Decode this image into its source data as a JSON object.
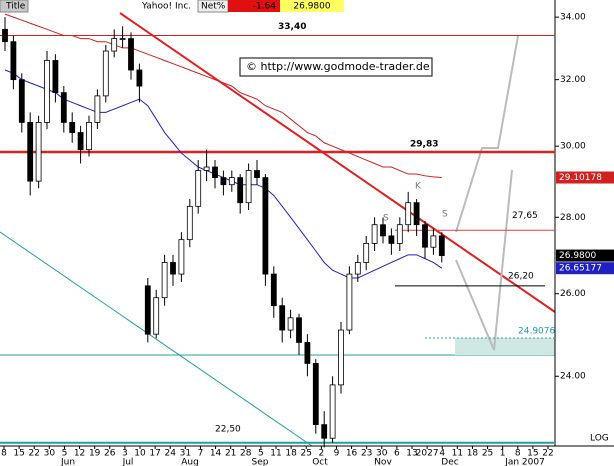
{
  "header": {
    "tab": "Title",
    "symbol": "Yahoo! Inc.",
    "field": "Net%",
    "change": "-1.64",
    "last": "26.9800"
  },
  "copyright": "© http://www.godmode-trader.de",
  "scale_label": "LOG",
  "chart_data": {
    "type": "candlestick",
    "ylim": [
      22.43,
      34.57
    ],
    "log": true,
    "yticks": [
      {
        "value": 24,
        "label": "24.00"
      },
      {
        "value": 26,
        "label": "26.00"
      },
      {
        "value": 28,
        "label": "28.00"
      },
      {
        "value": 30,
        "label": "30.00"
      },
      {
        "value": 32,
        "label": "32.00"
      },
      {
        "value": 34,
        "label": "34.00"
      }
    ],
    "xtick_labels": [
      "8",
      "15",
      "22",
      "30",
      "5",
      "12",
      "19",
      "26",
      "3",
      "10",
      "17",
      "24",
      "31",
      "7",
      "14",
      "21",
      "28",
      "5",
      "11",
      "18",
      "25",
      "2",
      "9",
      "16",
      "23",
      "30",
      "6",
      "13",
      "2027",
      "4",
      "11",
      "18",
      "25",
      "1",
      "8",
      "15",
      "22"
    ],
    "months": [
      "Jun",
      "Jul",
      "Aug",
      "Sep",
      "Oct",
      "Nov",
      "Dec",
      "Jan 2007"
    ],
    "open": [
      33.6,
      33.2,
      32.0,
      30.7,
      29.0,
      30.7,
      32.6,
      31.6,
      30.7,
      30.4,
      29.9,
      30.7,
      31.5,
      32.9,
      33.3,
      33.3,
      32.3,
      26.2,
      25.0,
      25.9,
      26.8,
      26.5,
      27.4,
      28.3,
      29.3,
      29.4,
      29.1,
      28.9,
      29.1,
      28.4,
      29.3,
      29.1,
      26.5,
      25.7,
      25.1,
      25.4,
      24.8,
      24.3,
      22.9,
      22.6,
      23.8,
      25.1,
      26.5,
      26.8,
      27.3,
      27.8,
      27.5,
      27.3,
      27.8,
      28.4,
      27.8,
      27.2,
      27.5
    ],
    "high": [
      34.0,
      33.4,
      32.2,
      31.0,
      30.9,
      32.9,
      32.8,
      31.8,
      31.0,
      30.6,
      30.9,
      31.7,
      33.1,
      33.6,
      33.7,
      33.5,
      32.5,
      26.4,
      26.1,
      27.0,
      27.0,
      27.6,
      28.5,
      29.6,
      29.9,
      29.6,
      29.3,
      29.3,
      29.2,
      29.5,
      29.6,
      29.2,
      26.7,
      25.9,
      25.6,
      25.5,
      25.0,
      24.4,
      23.2,
      24.0,
      25.3,
      26.7,
      27.0,
      27.5,
      28.0,
      28.0,
      27.7,
      28.0,
      28.7,
      28.5,
      27.9,
      27.7,
      27.6
    ],
    "low": [
      32.9,
      31.7,
      30.4,
      28.6,
      28.8,
      30.5,
      31.3,
      30.4,
      30.1,
      29.5,
      29.7,
      30.5,
      31.3,
      32.7,
      33.0,
      32.0,
      31.3,
      24.8,
      24.9,
      25.7,
      26.2,
      26.3,
      27.2,
      28.1,
      29.0,
      28.8,
      28.6,
      28.7,
      28.1,
      28.2,
      28.9,
      26.2,
      25.4,
      24.8,
      24.9,
      24.5,
      24.0,
      22.7,
      22.4,
      22.5,
      23.6,
      25.0,
      26.3,
      26.6,
      27.1,
      27.3,
      27.0,
      27.1,
      27.6,
      27.5,
      26.9,
      27.0,
      26.8
    ],
    "close": [
      33.2,
      32.0,
      30.7,
      29.0,
      30.7,
      32.6,
      31.6,
      30.7,
      30.4,
      29.9,
      30.7,
      31.5,
      32.9,
      33.3,
      33.3,
      32.3,
      31.8,
      25.0,
      25.9,
      26.8,
      26.5,
      27.4,
      28.3,
      29.3,
      29.4,
      29.1,
      28.9,
      29.1,
      28.4,
      29.3,
      29.1,
      26.5,
      25.7,
      25.1,
      25.4,
      24.8,
      24.3,
      22.9,
      22.6,
      23.8,
      25.1,
      26.5,
      26.8,
      27.3,
      27.8,
      27.5,
      27.3,
      27.8,
      28.4,
      27.8,
      27.2,
      27.5,
      26.98
    ],
    "series": [
      {
        "color": "#2020c0",
        "values": [
          32.3,
          32.2,
          32.0,
          31.9,
          31.8,
          31.7,
          31.6,
          31.4,
          31.3,
          31.2,
          31.1,
          31.0,
          31.0,
          31.1,
          31.2,
          31.3,
          31.4,
          31.2,
          30.8,
          30.4,
          30.1,
          29.8,
          29.6,
          29.4,
          29.3,
          29.2,
          29.1,
          29.0,
          28.9,
          28.9,
          28.9,
          28.8,
          28.6,
          28.3,
          28.0,
          27.7,
          27.4,
          27.1,
          26.8,
          26.6,
          26.5,
          26.4,
          26.4,
          26.5,
          26.6,
          26.7,
          26.8,
          26.9,
          27.0,
          27.0,
          26.9,
          26.8,
          26.65177
        ]
      },
      {
        "color": "#d02020",
        "values": [
          34.1,
          34.0,
          33.9,
          33.8,
          33.7,
          33.6,
          33.5,
          33.4,
          33.4,
          33.3,
          33.3,
          33.2,
          33.2,
          33.1,
          33.0,
          33.0,
          32.9,
          32.8,
          32.7,
          32.6,
          32.5,
          32.4,
          32.3,
          32.2,
          32.1,
          32.0,
          31.9,
          31.8,
          31.6,
          31.5,
          31.4,
          31.2,
          31.1,
          31.0,
          30.8,
          30.6,
          30.4,
          30.3,
          30.1,
          30.0,
          29.9,
          29.8,
          29.7,
          29.6,
          29.5,
          29.4,
          29.4,
          29.3,
          29.2,
          29.2,
          29.15,
          29.12,
          29.10178
        ]
      }
    ],
    "levels": [
      {
        "value": 33.4,
        "label": "33,40"
      },
      {
        "value": 29.83,
        "label": "29,83"
      },
      {
        "value": 27.65,
        "label": "27,65"
      },
      {
        "value": 26.2,
        "label": "26,20"
      },
      {
        "value": 24.9076,
        "label": "24.9076"
      },
      {
        "value": 22.5,
        "label": "22,50"
      }
    ],
    "pattern_labels": [
      "S",
      "K",
      "S"
    ]
  }
}
